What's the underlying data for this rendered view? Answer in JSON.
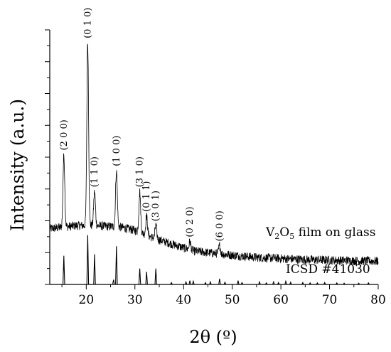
{
  "chart_data": {
    "type": "line",
    "title": "",
    "xlabel": "2θ (º)",
    "ylabel": "Intensity (a.u.)",
    "xlim": [
      12.5,
      80
    ],
    "ylim": [
      0,
      8
    ],
    "grid": false,
    "y_tick_labels_shown": false,
    "x_ticks": [
      20,
      30,
      40,
      50,
      60,
      70,
      80
    ],
    "x_tick_labels": [
      "20",
      "30",
      "40",
      "50",
      "60",
      "70",
      "80"
    ],
    "series": [
      {
        "name": "V₂O₅ film on glass",
        "label_html_base": "V",
        "label_sub1": "2",
        "label_mid": "O",
        "label_sub2": "5",
        "label_rest": " film on glass",
        "baseline": [
          [
            12.5,
            1.75
          ],
          [
            18,
            1.85
          ],
          [
            22,
            1.85
          ],
          [
            27,
            1.8
          ],
          [
            30,
            1.7
          ],
          [
            34,
            1.45
          ],
          [
            38,
            1.25
          ],
          [
            42,
            1.05
          ],
          [
            48,
            0.95
          ],
          [
            55,
            0.85
          ],
          [
            65,
            0.78
          ],
          [
            80,
            0.73
          ]
        ],
        "noise_amplitude": 0.14,
        "peaks": [
          {
            "x": 15.4,
            "y": 4.08,
            "label": "(2 0 0)"
          },
          {
            "x": 20.3,
            "y": 7.6,
            "label": "(0 1 0)"
          },
          {
            "x": 21.7,
            "y": 2.92,
            "label": "(1 1 0)"
          },
          {
            "x": 26.2,
            "y": 3.58,
            "label": "(1 0 0)"
          },
          {
            "x": 31.0,
            "y": 2.92,
            "label": "(3 1 0)"
          },
          {
            "x": 32.4,
            "y": 2.15,
            "label": "(0 1 1)"
          },
          {
            "x": 34.3,
            "y": 1.85,
            "label": "(3 0 1)"
          },
          {
            "x": 41.3,
            "y": 1.35,
            "label": "(0 2 0)"
          },
          {
            "x": 47.4,
            "y": 1.22,
            "label": "(6 0 0)"
          }
        ]
      },
      {
        "name": "ICSD #41030",
        "baseline": 0.0,
        "sticks": [
          [
            15.4,
            0.9
          ],
          [
            20.3,
            1.55
          ],
          [
            21.7,
            0.95
          ],
          [
            25.6,
            0.15
          ],
          [
            26.2,
            1.2
          ],
          [
            31.0,
            0.5
          ],
          [
            32.4,
            0.4
          ],
          [
            34.3,
            0.5
          ],
          [
            37.5,
            0.06
          ],
          [
            40.5,
            0.08
          ],
          [
            41.3,
            0.12
          ],
          [
            42.0,
            0.1
          ],
          [
            44.5,
            0.06
          ],
          [
            45.5,
            0.08
          ],
          [
            47.4,
            0.18
          ],
          [
            48.5,
            0.07
          ],
          [
            51.2,
            0.12
          ],
          [
            52.0,
            0.06
          ],
          [
            55.6,
            0.08
          ],
          [
            57.0,
            0.05
          ],
          [
            58.5,
            0.08
          ],
          [
            59.5,
            0.06
          ],
          [
            61.0,
            0.1
          ],
          [
            62.0,
            0.07
          ],
          [
            64.5,
            0.06
          ],
          [
            66.0,
            0.05
          ],
          [
            67.5,
            0.05
          ],
          [
            69.0,
            0.06
          ],
          [
            71.5,
            0.05
          ],
          [
            73.0,
            0.04
          ],
          [
            76.0,
            0.04
          ],
          [
            78.0,
            0.05
          ]
        ]
      }
    ]
  }
}
